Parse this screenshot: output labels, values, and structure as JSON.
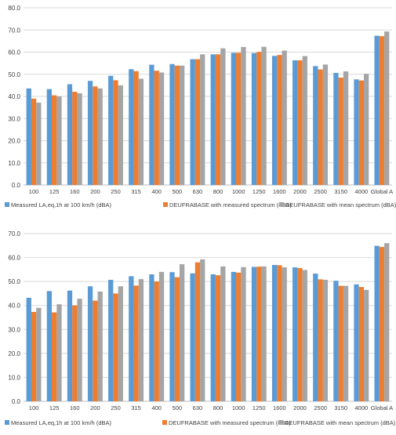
{
  "chart_data": [
    {
      "type": "bar",
      "title": "",
      "xlabel": "",
      "ylabel": "",
      "ylim": [
        0,
        80
      ],
      "yticks": [
        "0.0",
        "10.0",
        "20.0",
        "30.0",
        "40.0",
        "50.0",
        "60.0",
        "70.0",
        "80.0"
      ],
      "grid": true,
      "legend": "bottom",
      "categories": [
        "100",
        "125",
        "160",
        "200",
        "250",
        "315",
        "400",
        "500",
        "630",
        "800",
        "1000",
        "1250",
        "1600",
        "2000",
        "2500",
        "3150",
        "4000",
        "Global A"
      ],
      "series": [
        {
          "name": "Measured LA,eq,1h at 100 km/h (dBA)",
          "color": "#5b9bd5",
          "values": [
            43.6,
            43.3,
            45.5,
            47.0,
            49.3,
            52.3,
            54.3,
            54.6,
            56.8,
            59.0,
            59.7,
            59.6,
            58.3,
            56.3,
            53.7,
            50.6,
            47.7,
            67.4
          ]
        },
        {
          "name": "DEUFRABASE with measured spectrum (dBA)",
          "color": "#ed7d31",
          "values": [
            39.0,
            40.5,
            42.1,
            44.5,
            47.3,
            51.4,
            51.6,
            53.9,
            56.8,
            59.0,
            59.7,
            60.1,
            58.7,
            56.3,
            52.2,
            48.5,
            47.2,
            67.2
          ]
        },
        {
          "name": "DEUFRABASE with mean spectrum (dBA)",
          "color": "#a5a5a5",
          "values": [
            37.2,
            40.0,
            41.4,
            43.6,
            45.0,
            48.0,
            50.8,
            53.9,
            59.0,
            61.7,
            62.3,
            62.4,
            60.7,
            58.2,
            54.4,
            51.3,
            50.2,
            69.3
          ]
        }
      ]
    },
    {
      "type": "bar",
      "title": "",
      "xlabel": "",
      "ylabel": "",
      "ylim": [
        0,
        70
      ],
      "yticks": [
        "0.0",
        "10.0",
        "20.0",
        "30.0",
        "40.0",
        "50.0",
        "60.0",
        "70.0"
      ],
      "grid": true,
      "legend": "bottom",
      "categories": [
        "100",
        "125",
        "160",
        "200",
        "250",
        "315",
        "400",
        "500",
        "630",
        "800",
        "1000",
        "1250",
        "1600",
        "2000",
        "2500",
        "3150",
        "4000",
        "Global A"
      ],
      "series": [
        {
          "name": "Measured LA,eq,1h at 100 km/h (dBA)",
          "color": "#5b9bd5",
          "values": [
            43.2,
            46.0,
            46.2,
            48.0,
            50.7,
            52.2,
            53.0,
            53.9,
            53.4,
            53.0,
            54.0,
            56.1,
            56.9,
            55.9,
            53.3,
            50.3,
            48.8,
            64.9
          ]
        },
        {
          "name": "DEUFRABASE with measured spectrum (dBA)",
          "color": "#ed7d31",
          "values": [
            37.3,
            37.1,
            40.0,
            42.0,
            45.0,
            48.3,
            50.0,
            51.8,
            58.0,
            52.6,
            53.7,
            56.2,
            56.8,
            55.6,
            50.9,
            48.2,
            47.7,
            64.4
          ]
        },
        {
          "name": "DEUFRABASE with mean spectrum (dBA)",
          "color": "#a5a5a5",
          "values": [
            39.0,
            40.5,
            42.8,
            45.8,
            48.0,
            51.0,
            54.0,
            57.2,
            59.2,
            56.3,
            56.0,
            56.3,
            55.9,
            54.8,
            50.7,
            48.2,
            46.5,
            66.0
          ]
        }
      ]
    }
  ]
}
